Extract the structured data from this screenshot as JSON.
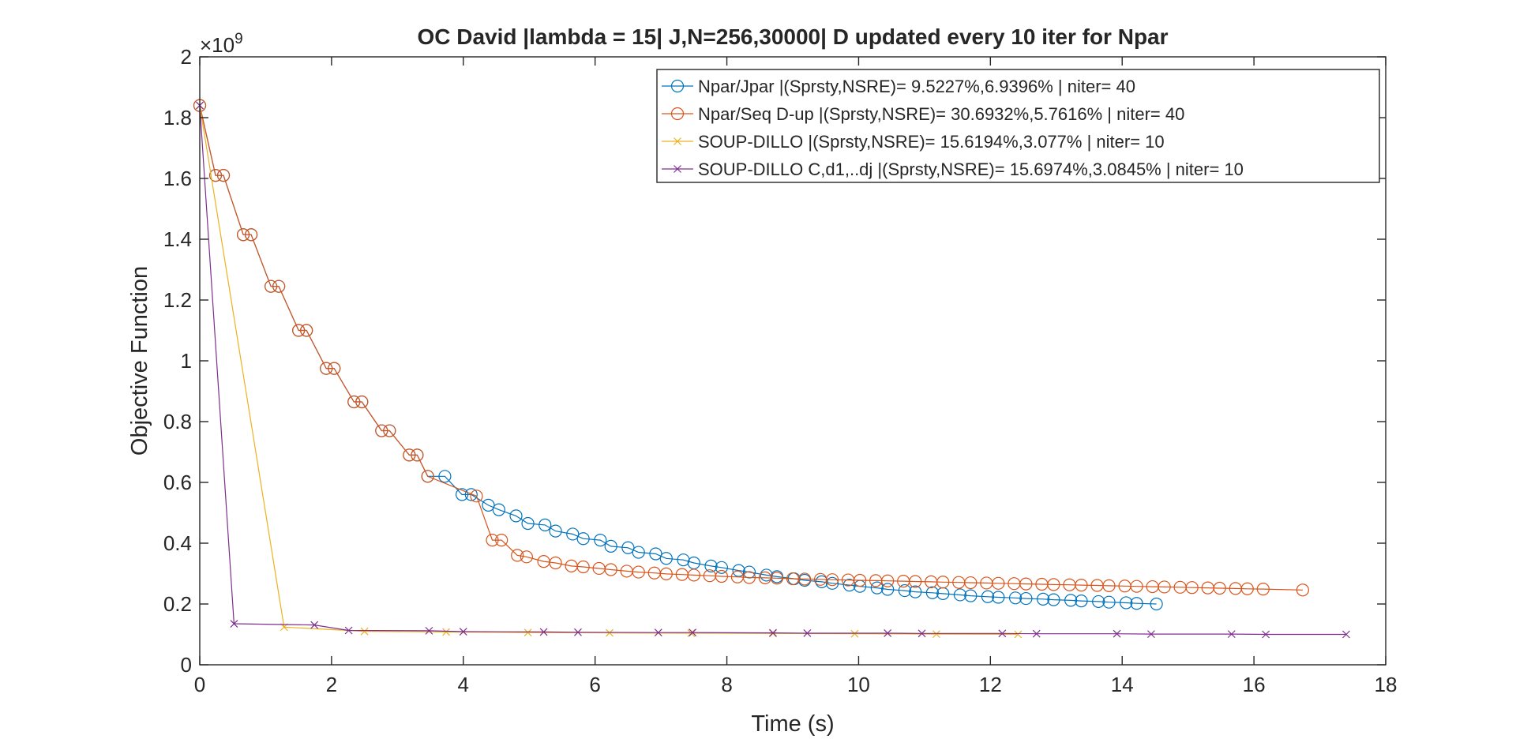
{
  "chart_data": {
    "type": "line",
    "title": "OC David |lambda = 15| J,N=256,30000| D updated every 10 iter for Npar",
    "xlabel": "Time (s)",
    "ylabel": "Objective Function",
    "y_exponent_label": "×10",
    "y_exponent_power": "9",
    "xlim": [
      0,
      18
    ],
    "ylim": [
      0,
      2
    ],
    "xticks": [
      "0",
      "2",
      "4",
      "6",
      "8",
      "10",
      "12",
      "14",
      "16",
      "18"
    ],
    "yticks": [
      "0",
      "0.2",
      "0.4",
      "0.6",
      "0.8",
      "1",
      "1.2",
      "1.4",
      "1.6",
      "1.8",
      "2"
    ],
    "grid": false,
    "legend_position": "top-right",
    "series": [
      {
        "name": "Npar/Jpar |(Sprsty,NSRE)= 9.5227%,6.9396% | niter= 40",
        "color": "#0072BD",
        "marker": "circle",
        "x": [
          0.0,
          0.24,
          0.36,
          0.66,
          0.78,
          1.08,
          1.2,
          1.5,
          1.62,
          1.92,
          2.04,
          2.34,
          2.46,
          2.76,
          2.88,
          3.18,
          3.3,
          3.46,
          3.72,
          3.98,
          4.12,
          4.38,
          4.54,
          4.8,
          4.98,
          5.24,
          5.4,
          5.66,
          5.82,
          6.08,
          6.24,
          6.5,
          6.66,
          6.92,
          7.08,
          7.34,
          7.5,
          7.76,
          7.92,
          8.18,
          8.34,
          8.6,
          8.76,
          9.02,
          9.18,
          9.44,
          9.6,
          9.86,
          10.02,
          10.28,
          10.44,
          10.7,
          10.86,
          11.12,
          11.28,
          11.54,
          11.7,
          11.96,
          12.12,
          12.38,
          12.54,
          12.8,
          12.96,
          13.22,
          13.38,
          13.64,
          13.8,
          14.06,
          14.22,
          14.52
        ],
        "y": [
          1.84,
          1.61,
          1.61,
          1.415,
          1.415,
          1.245,
          1.245,
          1.1,
          1.1,
          0.975,
          0.975,
          0.865,
          0.865,
          0.77,
          0.77,
          0.69,
          0.69,
          0.62,
          0.62,
          0.56,
          0.56,
          0.525,
          0.51,
          0.49,
          0.465,
          0.46,
          0.44,
          0.43,
          0.415,
          0.41,
          0.39,
          0.385,
          0.37,
          0.365,
          0.35,
          0.345,
          0.335,
          0.325,
          0.32,
          0.31,
          0.305,
          0.295,
          0.29,
          0.283,
          0.278,
          0.273,
          0.268,
          0.262,
          0.258,
          0.253,
          0.248,
          0.244,
          0.24,
          0.237,
          0.234,
          0.23,
          0.227,
          0.224,
          0.222,
          0.22,
          0.218,
          0.216,
          0.214,
          0.212,
          0.21,
          0.208,
          0.206,
          0.204,
          0.202,
          0.2
        ]
      },
      {
        "name": "Npar/Seq D-up |(Sprsty,NSRE)= 30.6932%,5.7616% | niter= 40",
        "color": "#D95319",
        "marker": "circle",
        "x": [
          0.0,
          0.24,
          0.36,
          0.66,
          0.78,
          1.08,
          1.2,
          1.5,
          1.62,
          1.92,
          2.04,
          2.34,
          2.46,
          2.76,
          2.88,
          3.18,
          3.3,
          3.46,
          4.2,
          4.44,
          4.58,
          4.82,
          4.96,
          5.22,
          5.4,
          5.64,
          5.82,
          6.06,
          6.24,
          6.48,
          6.66,
          6.9,
          7.08,
          7.32,
          7.5,
          7.74,
          7.92,
          8.16,
          8.34,
          8.58,
          8.76,
          9.0,
          9.18,
          9.42,
          9.6,
          9.84,
          10.02,
          10.26,
          10.44,
          10.68,
          10.86,
          11.1,
          11.28,
          11.52,
          11.7,
          11.94,
          12.12,
          12.36,
          12.54,
          12.78,
          12.96,
          13.2,
          13.38,
          13.62,
          13.8,
          14.04,
          14.22,
          14.46,
          14.64,
          14.88,
          15.06,
          15.3,
          15.48,
          15.72,
          15.9,
          16.14,
          16.74
        ],
        "y": [
          1.84,
          1.61,
          1.61,
          1.415,
          1.415,
          1.245,
          1.245,
          1.1,
          1.1,
          0.975,
          0.975,
          0.865,
          0.865,
          0.77,
          0.77,
          0.69,
          0.69,
          0.62,
          0.555,
          0.41,
          0.41,
          0.36,
          0.355,
          0.34,
          0.335,
          0.325,
          0.322,
          0.317,
          0.313,
          0.308,
          0.305,
          0.302,
          0.299,
          0.297,
          0.295,
          0.293,
          0.291,
          0.289,
          0.287,
          0.286,
          0.285,
          0.283,
          0.282,
          0.281,
          0.28,
          0.279,
          0.278,
          0.277,
          0.276,
          0.275,
          0.274,
          0.273,
          0.272,
          0.271,
          0.27,
          0.269,
          0.268,
          0.267,
          0.266,
          0.265,
          0.264,
          0.263,
          0.262,
          0.261,
          0.26,
          0.259,
          0.258,
          0.257,
          0.256,
          0.255,
          0.254,
          0.253,
          0.252,
          0.251,
          0.25,
          0.249,
          0.246
        ]
      },
      {
        "name": "SOUP-DILLO |(Sprsty,NSRE)= 15.6194%,3.077% | niter= 10",
        "color": "#EDB120",
        "marker": "x",
        "x": [
          0.0,
          1.28,
          2.5,
          3.74,
          4.98,
          6.22,
          7.46,
          8.7,
          9.94,
          11.18,
          12.42
        ],
        "y": [
          1.84,
          0.124,
          0.11,
          0.108,
          0.106,
          0.105,
          0.104,
          0.103,
          0.102,
          0.101,
          0.1
        ]
      },
      {
        "name": "SOUP-DILLO C,d1,..dj |(Sprsty,NSRE)= 15.6974%,3.0845% | niter= 10",
        "color": "#7E2F8E",
        "marker": "x",
        "x": [
          0.0,
          0.52,
          1.74,
          2.26,
          3.48,
          4.0,
          5.22,
          5.74,
          6.96,
          7.48,
          8.7,
          9.22,
          10.44,
          10.96,
          12.18,
          12.7,
          13.92,
          14.44,
          15.66,
          16.18,
          17.4
        ],
        "y": [
          1.84,
          0.135,
          0.131,
          0.113,
          0.112,
          0.109,
          0.108,
          0.107,
          0.106,
          0.106,
          0.105,
          0.104,
          0.104,
          0.103,
          0.103,
          0.102,
          0.102,
          0.101,
          0.101,
          0.1,
          0.1
        ]
      }
    ]
  }
}
